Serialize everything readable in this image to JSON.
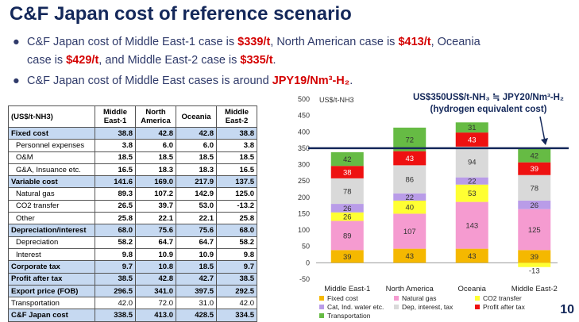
{
  "slide": {
    "title": "C&F Japan cost of reference scenario",
    "bullet1_line1": "C&F Japan cost of Middle East-1 case is ",
    "bullet1_v1": "$339/t",
    "bullet1_t2": ", North American case is ",
    "bullet1_v2": "$413/t",
    "bullet1_t3": ", Oceania",
    "bullet1_t4": "case is ",
    "bullet1_v3": "$429/t",
    "bullet1_t5": ", and Middle East-2 case is ",
    "bullet1_v4": "$335/t",
    "bullet1_t6": ".",
    "bullet2_text": "C&F Japan cost of Middle East cases is around ",
    "bullet2_value": "JPY19/Nm³-H₂",
    "bullet2_end": ".",
    "page_number": "10",
    "bullet_glyph": "●"
  },
  "table": {
    "header": [
      "(US$/t-NH3)",
      "Middle East-1",
      "North America",
      "Oceania",
      "Middle East-2"
    ],
    "rows": [
      {
        "label": "Fixed cost",
        "values": [
          "38.8",
          "42.8",
          "42.8",
          "38.8"
        ],
        "highlight": true
      },
      {
        "label": "Personnel expenses",
        "values": [
          "3.8",
          "6.0",
          "6.0",
          "3.8"
        ],
        "sub": true
      },
      {
        "label": "O&M",
        "values": [
          "18.5",
          "18.5",
          "18.5",
          "18.5"
        ],
        "sub": true
      },
      {
        "label": "G&A, Insuance etc.",
        "values": [
          "16.5",
          "18.3",
          "18.3",
          "16.5"
        ],
        "sub": true
      },
      {
        "label": "Variable cost",
        "values": [
          "141.6",
          "169.0",
          "217.9",
          "137.5"
        ],
        "highlight": true
      },
      {
        "label": "Natural gas",
        "values": [
          "89.3",
          "107.2",
          "142.9",
          "125.0"
        ],
        "sub": true
      },
      {
        "label": "CO2 transfer",
        "values": [
          "26.5",
          "39.7",
          "53.0",
          "-13.2"
        ],
        "sub": true
      },
      {
        "label": "Other",
        "values": [
          "25.8",
          "22.1",
          "22.1",
          "25.8"
        ],
        "sub": true
      },
      {
        "label": "Depreciation/interest",
        "values": [
          "68.0",
          "75.6",
          "75.6",
          "68.0"
        ],
        "highlight": true
      },
      {
        "label": "Depreciation",
        "values": [
          "58.2",
          "64.7",
          "64.7",
          "58.2"
        ],
        "sub": true
      },
      {
        "label": "Interest",
        "values": [
          "9.8",
          "10.9",
          "10.9",
          "9.8"
        ],
        "sub": true
      },
      {
        "label": "Corporate tax",
        "values": [
          "9.7",
          "10.8",
          "18.5",
          "9.7"
        ],
        "highlight": true
      },
      {
        "label": "Profit after tax",
        "values": [
          "38.5",
          "42.8",
          "42.7",
          "38.5"
        ],
        "highlight": true
      },
      {
        "label": "Export price (FOB)",
        "values": [
          "296.5",
          "341.0",
          "397.5",
          "292.5"
        ],
        "highlight": true
      },
      {
        "label": "Transportation",
        "values": [
          "42.0",
          "72.0",
          "31.0",
          "42.0"
        ]
      },
      {
        "label": "C&F Japan cost",
        "values": [
          "338.5",
          "413.0",
          "428.5",
          "334.5"
        ],
        "highlight": true
      }
    ]
  },
  "chart_data": {
    "type": "bar",
    "stacked": true,
    "ylabel": "US$/t-NH3",
    "ylim": [
      -50,
      500
    ],
    "yticks": [
      -50,
      0,
      50,
      100,
      150,
      200,
      250,
      300,
      350,
      400,
      450,
      500
    ],
    "categories": [
      "Middle East-1",
      "North America",
      "Oceania",
      "Middle East-2"
    ],
    "series": [
      {
        "name": "Fixed cost",
        "color": "#f5b800",
        "values": [
          39,
          43,
          43,
          39
        ]
      },
      {
        "name": "Natural gas",
        "color": "#f59bd0",
        "values": [
          89,
          107,
          143,
          125
        ]
      },
      {
        "name": "CO2 transfer",
        "color": "#ffff33",
        "values": [
          26,
          40,
          53,
          -13
        ]
      },
      {
        "name": "Cat, Ind. water etc.",
        "color": "#b99ce8",
        "values": [
          26,
          22,
          22,
          26
        ]
      },
      {
        "name": "Dep, interest, tax",
        "color": "#d9d9d9",
        "values": [
          78,
          86,
          94,
          78
        ]
      },
      {
        "name": "Profit after tax",
        "color": "#ee1111",
        "values": [
          38,
          43,
          43,
          39
        ]
      },
      {
        "name": "Transportation",
        "color": "#66bb44",
        "values": [
          42,
          72,
          31,
          42
        ]
      }
    ],
    "reference_line": {
      "value": 350,
      "label_line1": "US$350US$/t-NH₃ ≒ JPY20/Nm³-H₂",
      "label_line2": "(hydrogen equivalent cost)",
      "color": "#14285a"
    },
    "legend_position": "bottom"
  }
}
